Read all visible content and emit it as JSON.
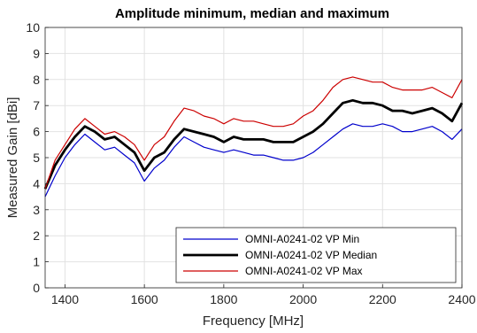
{
  "chart_data": {
    "type": "line",
    "title": "Amplitude minimum, median and maximum",
    "xlabel": "Frequency [MHz]",
    "ylabel": "Measured Gain [dBi]",
    "xlim": [
      1350,
      2400
    ],
    "ylim": [
      0,
      10
    ],
    "xticks": [
      1400,
      1600,
      1800,
      2000,
      2200,
      2400
    ],
    "yticks": [
      0,
      1,
      2,
      3,
      4,
      5,
      6,
      7,
      8,
      9,
      10
    ],
    "grid": true,
    "legend_position": "bottom-right",
    "x": [
      1350,
      1375,
      1400,
      1425,
      1450,
      1475,
      1500,
      1525,
      1550,
      1575,
      1600,
      1625,
      1650,
      1675,
      1700,
      1725,
      1750,
      1775,
      1800,
      1825,
      1850,
      1875,
      1900,
      1925,
      1950,
      1975,
      2000,
      2025,
      2050,
      2075,
      2100,
      2125,
      2150,
      2175,
      2200,
      2225,
      2250,
      2275,
      2300,
      2325,
      2350,
      2375,
      2400
    ],
    "series": [
      {
        "name": "OMNI-A0241-02 VP Min",
        "color": "#0000cc",
        "values": [
          3.5,
          4.3,
          5.0,
          5.5,
          5.9,
          5.6,
          5.3,
          5.4,
          5.1,
          4.8,
          4.1,
          4.6,
          4.9,
          5.4,
          5.8,
          5.6,
          5.4,
          5.3,
          5.2,
          5.3,
          5.2,
          5.1,
          5.1,
          5.0,
          4.9,
          4.9,
          5.0,
          5.2,
          5.5,
          5.8,
          6.1,
          6.3,
          6.2,
          6.2,
          6.3,
          6.2,
          6.0,
          6.0,
          6.1,
          6.2,
          6.0,
          5.7,
          6.1
        ]
      },
      {
        "name": "OMNI-A0241-02 VP Median",
        "color": "#000000",
        "values": [
          3.8,
          4.7,
          5.3,
          5.8,
          6.2,
          6.0,
          5.7,
          5.8,
          5.5,
          5.2,
          4.5,
          5.0,
          5.2,
          5.7,
          6.1,
          6.0,
          5.9,
          5.8,
          5.6,
          5.8,
          5.7,
          5.7,
          5.7,
          5.6,
          5.6,
          5.6,
          5.8,
          6.0,
          6.3,
          6.7,
          7.1,
          7.2,
          7.1,
          7.1,
          7.0,
          6.8,
          6.8,
          6.7,
          6.8,
          6.9,
          6.7,
          6.4,
          7.1
        ]
      },
      {
        "name": "OMNI-A0241-02 VP Max",
        "color": "#cc0000",
        "values": [
          3.8,
          4.9,
          5.5,
          6.1,
          6.5,
          6.2,
          5.9,
          6.0,
          5.8,
          5.5,
          4.9,
          5.5,
          5.8,
          6.4,
          6.9,
          6.8,
          6.6,
          6.5,
          6.3,
          6.5,
          6.4,
          6.4,
          6.3,
          6.2,
          6.2,
          6.3,
          6.6,
          6.8,
          7.2,
          7.7,
          8.0,
          8.1,
          8.0,
          7.9,
          7.9,
          7.7,
          7.6,
          7.6,
          7.6,
          7.7,
          7.5,
          7.3,
          8.0
        ]
      }
    ]
  }
}
